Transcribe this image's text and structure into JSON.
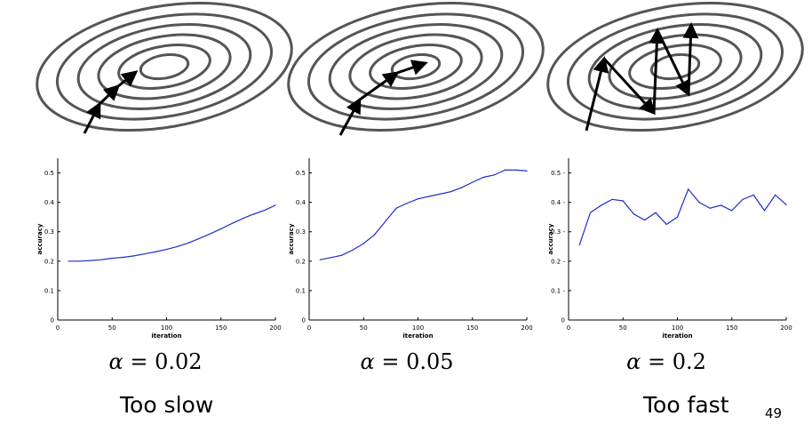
{
  "panels": [
    {
      "alpha_symbol": "α",
      "alpha_value": "= 0.02",
      "chart_data": {
        "type": "line",
        "xlabel": "iteration",
        "ylabel": "accuracy",
        "xlim": [
          0,
          200
        ],
        "ylim": [
          0,
          0.55
        ],
        "xticks": [
          "0",
          "50",
          "100",
          "150",
          "200"
        ],
        "yticks": [
          "0",
          "0.1",
          "0.2",
          "0.3",
          "0.4",
          "0.5"
        ],
        "grid": false,
        "series": [
          {
            "x": [
              10,
              20,
              30,
              40,
              50,
              60,
              70,
              80,
              90,
              100,
              110,
              120,
              130,
              140,
              150,
              160,
              170,
              180,
              190,
              200
            ],
            "values": [
              0.2,
              0.2,
              0.202,
              0.205,
              0.21,
              0.213,
              0.218,
              0.225,
              0.232,
              0.24,
              0.25,
              0.262,
              0.277,
              0.293,
              0.31,
              0.328,
              0.345,
              0.36,
              0.373,
              0.39
            ],
            "color": "#1f2ec9"
          }
        ]
      }
    },
    {
      "alpha_symbol": "α",
      "alpha_value": "= 0.05",
      "chart_data": {
        "type": "line",
        "xlabel": "iteration",
        "ylabel": "accuracy",
        "xlim": [
          0,
          200
        ],
        "ylim": [
          0,
          0.55
        ],
        "xticks": [
          "0",
          "50",
          "100",
          "150",
          "200"
        ],
        "yticks": [
          "0",
          "0.1",
          "0.2",
          "0.3",
          "0.4",
          "0.5"
        ],
        "grid": false,
        "series": [
          {
            "x": [
              10,
              20,
              30,
              40,
              50,
              60,
              70,
              80,
              90,
              100,
              110,
              120,
              130,
              140,
              150,
              160,
              170,
              180,
              190,
              200
            ],
            "values": [
              0.205,
              0.212,
              0.22,
              0.238,
              0.26,
              0.29,
              0.335,
              0.38,
              0.397,
              0.412,
              0.42,
              0.428,
              0.436,
              0.45,
              0.468,
              0.485,
              0.493,
              0.51,
              0.51,
              0.507
            ],
            "color": "#1f2ec9"
          }
        ]
      }
    },
    {
      "alpha_symbol": "α",
      "alpha_value": "= 0.2",
      "chart_data": {
        "type": "line",
        "xlabel": "iteration",
        "ylabel": "accuracy",
        "xlim": [
          0,
          200
        ],
        "ylim": [
          0,
          0.55
        ],
        "xticks": [
          "0",
          "50",
          "100",
          "150",
          "200"
        ],
        "yticks": [
          "0",
          "0.1 -",
          "0.2 -",
          "0.3 -",
          "0.4 -",
          "0.5 -"
        ],
        "grid": false,
        "series": [
          {
            "x": [
              10,
              20,
              30,
              40,
              50,
              60,
              70,
              80,
              90,
              100,
              110,
              120,
              130,
              140,
              150,
              160,
              170,
              180,
              190,
              200
            ],
            "values": [
              0.255,
              0.365,
              0.39,
              0.41,
              0.405,
              0.36,
              0.34,
              0.365,
              0.325,
              0.35,
              0.445,
              0.4,
              0.38,
              0.39,
              0.372,
              0.41,
              0.425,
              0.372,
              0.425,
              0.392
            ],
            "color": "#1f2ec9"
          }
        ]
      }
    }
  ],
  "notes": {
    "left": "Too slow",
    "right": "Too fast"
  },
  "page_number": "49",
  "colors": {
    "contour": "#555555",
    "arrow": "#000000",
    "line": "#1f2ec9"
  }
}
